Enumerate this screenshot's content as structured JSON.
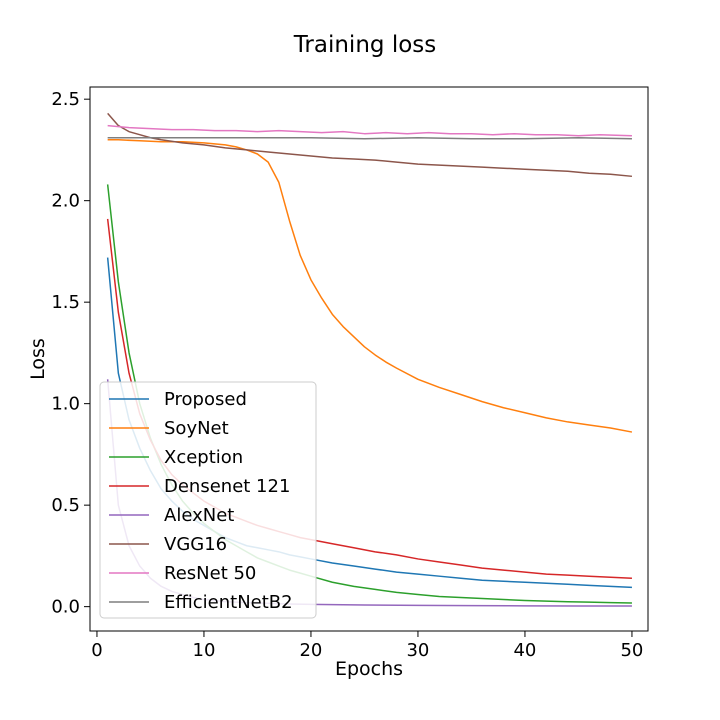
{
  "chart_data": {
    "type": "line",
    "title": "Training loss",
    "xlabel": "Epochs",
    "ylabel": "Loss",
    "xlim": [
      -0.65,
      51.5
    ],
    "ylim": [
      -0.12,
      2.56
    ],
    "xticks": [
      0,
      10,
      20,
      30,
      40,
      50
    ],
    "yticks": [
      0.0,
      0.5,
      1.0,
      1.5,
      2.0,
      2.5
    ],
    "xtick_labels": [
      "0",
      "10",
      "20",
      "30",
      "40",
      "50"
    ],
    "ytick_labels": [
      "0.0",
      "0.5",
      "1.0",
      "1.5",
      "2.0",
      "2.5"
    ],
    "grid": false,
    "legend_position": "lower-left",
    "series": [
      {
        "name": "Proposed",
        "color": "#1f77b4",
        "x": [
          1,
          2,
          3,
          4,
          5,
          6,
          7,
          8,
          9,
          10,
          11,
          12,
          13,
          14,
          15,
          16,
          17,
          18,
          19,
          20,
          22,
          24,
          26,
          28,
          30,
          32,
          34,
          36,
          38,
          40,
          42,
          44,
          46,
          48,
          50
        ],
        "y": [
          1.72,
          1.15,
          0.92,
          0.78,
          0.67,
          0.58,
          0.52,
          0.47,
          0.43,
          0.4,
          0.37,
          0.34,
          0.32,
          0.3,
          0.29,
          0.28,
          0.27,
          0.255,
          0.245,
          0.235,
          0.215,
          0.2,
          0.185,
          0.17,
          0.16,
          0.15,
          0.14,
          0.13,
          0.125,
          0.12,
          0.115,
          0.11,
          0.105,
          0.1,
          0.095
        ]
      },
      {
        "name": "SoyNet",
        "color": "#ff7f0e",
        "x": [
          1,
          2,
          4,
          6,
          8,
          10,
          12,
          13,
          14,
          15,
          16,
          17,
          18,
          19,
          20,
          21,
          22,
          23,
          24,
          25,
          26,
          27,
          28,
          30,
          32,
          34,
          36,
          38,
          40,
          42,
          44,
          46,
          48,
          50
        ],
        "y": [
          2.3,
          2.3,
          2.295,
          2.29,
          2.29,
          2.285,
          2.275,
          2.265,
          2.25,
          2.23,
          2.19,
          2.09,
          1.9,
          1.73,
          1.61,
          1.52,
          1.44,
          1.38,
          1.33,
          1.28,
          1.24,
          1.205,
          1.175,
          1.12,
          1.08,
          1.045,
          1.01,
          0.98,
          0.955,
          0.93,
          0.91,
          0.895,
          0.88,
          0.86
        ]
      },
      {
        "name": "Xception",
        "color": "#2ca02c",
        "x": [
          1,
          2,
          3,
          4,
          5,
          6,
          7,
          8,
          9,
          10,
          11,
          12,
          13,
          14,
          15,
          16,
          17,
          18,
          19,
          20,
          22,
          24,
          26,
          28,
          30,
          32,
          34,
          36,
          38,
          40,
          42,
          44,
          46,
          48,
          50
        ],
        "y": [
          2.08,
          1.6,
          1.25,
          1.0,
          0.83,
          0.7,
          0.6,
          0.52,
          0.46,
          0.41,
          0.37,
          0.33,
          0.3,
          0.27,
          0.24,
          0.22,
          0.2,
          0.18,
          0.165,
          0.15,
          0.12,
          0.1,
          0.085,
          0.07,
          0.06,
          0.05,
          0.045,
          0.04,
          0.035,
          0.03,
          0.027,
          0.024,
          0.022,
          0.02,
          0.018
        ]
      },
      {
        "name": "Densenet 121",
        "color": "#d62728",
        "x": [
          1,
          2,
          3,
          4,
          5,
          6,
          7,
          8,
          9,
          10,
          11,
          12,
          13,
          14,
          15,
          16,
          17,
          18,
          19,
          20,
          22,
          24,
          26,
          28,
          30,
          32,
          34,
          36,
          38,
          40,
          42,
          44,
          46,
          48,
          50
        ],
        "y": [
          1.91,
          1.45,
          1.15,
          0.95,
          0.82,
          0.72,
          0.65,
          0.6,
          0.56,
          0.52,
          0.49,
          0.46,
          0.44,
          0.42,
          0.4,
          0.385,
          0.37,
          0.355,
          0.34,
          0.33,
          0.31,
          0.29,
          0.27,
          0.255,
          0.235,
          0.22,
          0.205,
          0.19,
          0.18,
          0.17,
          0.16,
          0.155,
          0.15,
          0.145,
          0.14
        ]
      },
      {
        "name": "AlexNet",
        "color": "#9467bd",
        "x": [
          1,
          2,
          3,
          4,
          5,
          6,
          7,
          8,
          9,
          10,
          12,
          14,
          16,
          18,
          20,
          25,
          30,
          35,
          40,
          45,
          50
        ],
        "y": [
          1.12,
          0.5,
          0.3,
          0.2,
          0.14,
          0.1,
          0.075,
          0.06,
          0.045,
          0.035,
          0.025,
          0.02,
          0.016,
          0.013,
          0.011,
          0.008,
          0.006,
          0.005,
          0.004,
          0.003,
          0.003
        ]
      },
      {
        "name": "VGG16",
        "color": "#8c564b",
        "x": [
          1,
          2,
          3,
          4,
          5,
          6,
          8,
          10,
          12,
          14,
          16,
          18,
          20,
          22,
          24,
          26,
          28,
          30,
          32,
          34,
          36,
          38,
          40,
          42,
          44,
          46,
          48,
          50
        ],
        "y": [
          2.43,
          2.37,
          2.34,
          2.325,
          2.31,
          2.3,
          2.285,
          2.275,
          2.26,
          2.25,
          2.24,
          2.23,
          2.22,
          2.21,
          2.205,
          2.2,
          2.19,
          2.18,
          2.175,
          2.17,
          2.165,
          2.16,
          2.155,
          2.15,
          2.145,
          2.135,
          2.13,
          2.12
        ]
      },
      {
        "name": "ResNet 50",
        "color": "#e377c2",
        "x": [
          1,
          3,
          5,
          7,
          9,
          11,
          13,
          15,
          17,
          19,
          21,
          23,
          25,
          27,
          29,
          31,
          33,
          35,
          37,
          39,
          41,
          43,
          45,
          47,
          50
        ],
        "y": [
          2.37,
          2.36,
          2.355,
          2.35,
          2.35,
          2.345,
          2.345,
          2.34,
          2.345,
          2.34,
          2.335,
          2.34,
          2.33,
          2.335,
          2.33,
          2.335,
          2.33,
          2.33,
          2.325,
          2.33,
          2.325,
          2.325,
          2.32,
          2.325,
          2.32
        ]
      },
      {
        "name": "EfficientNetB2",
        "color": "#7f7f7f",
        "x": [
          1,
          5,
          10,
          15,
          20,
          25,
          30,
          35,
          40,
          45,
          50
        ],
        "y": [
          2.31,
          2.31,
          2.31,
          2.31,
          2.31,
          2.305,
          2.31,
          2.305,
          2.305,
          2.31,
          2.305
        ]
      }
    ]
  }
}
